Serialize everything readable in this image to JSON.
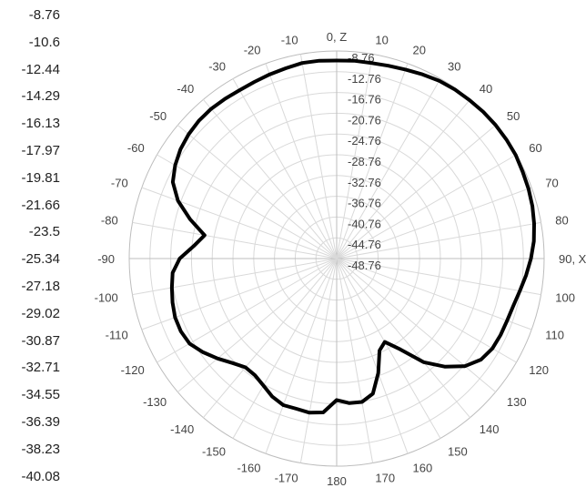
{
  "chart_data": {
    "type": "polar-line",
    "title": "",
    "color_scale_labels": [
      "-8.76",
      "-10.6",
      "-12.44",
      "-14.29",
      "-16.13",
      "-17.97",
      "-19.81",
      "-21.66",
      "-23.5",
      "-25.34",
      "-27.18",
      "-29.02",
      "-30.87",
      "-32.71",
      "-34.55",
      "-36.39",
      "-38.23",
      "-40.08"
    ],
    "radial_ticks": [
      "-8.76",
      "-12.76",
      "-16.76",
      "-20.76",
      "-24.76",
      "-28.76",
      "-32.76",
      "-36.76",
      "-40.76",
      "-44.76",
      "-48.76"
    ],
    "radial_range": [
      -48.76,
      -8.76
    ],
    "angular_ticks": [
      {
        "angle": 0,
        "label": "0, Z"
      },
      {
        "angle": 10,
        "label": "10"
      },
      {
        "angle": 20,
        "label": "20"
      },
      {
        "angle": 30,
        "label": "30"
      },
      {
        "angle": 40,
        "label": "40"
      },
      {
        "angle": 50,
        "label": "50"
      },
      {
        "angle": 60,
        "label": "60"
      },
      {
        "angle": 70,
        "label": "70"
      },
      {
        "angle": 80,
        "label": "80"
      },
      {
        "angle": 90,
        "label": "90, X"
      },
      {
        "angle": 100,
        "label": "100"
      },
      {
        "angle": 110,
        "label": "110"
      },
      {
        "angle": 120,
        "label": "120"
      },
      {
        "angle": 130,
        "label": "130"
      },
      {
        "angle": 140,
        "label": "140"
      },
      {
        "angle": 150,
        "label": "150"
      },
      {
        "angle": 160,
        "label": "160"
      },
      {
        "angle": 170,
        "label": "170"
      },
      {
        "angle": 180,
        "label": "180"
      },
      {
        "angle": -170,
        "label": "-170"
      },
      {
        "angle": -160,
        "label": "-160"
      },
      {
        "angle": -150,
        "label": "-150"
      },
      {
        "angle": -140,
        "label": "-140"
      },
      {
        "angle": -130,
        "label": "-130"
      },
      {
        "angle": -120,
        "label": "-120"
      },
      {
        "angle": -110,
        "label": "-110"
      },
      {
        "angle": -100,
        "label": "-100"
      },
      {
        "angle": -90,
        "label": "-90"
      },
      {
        "angle": -80,
        "label": "-80"
      },
      {
        "angle": -70,
        "label": "-70"
      },
      {
        "angle": -60,
        "label": "-60"
      },
      {
        "angle": -50,
        "label": "-50"
      },
      {
        "angle": -40,
        "label": "-40"
      },
      {
        "angle": -30,
        "label": "-30"
      },
      {
        "angle": -20,
        "label": "-20"
      },
      {
        "angle": -10,
        "label": "-10"
      }
    ],
    "grid": true,
    "series": [
      {
        "color": "#000000",
        "theta": [
          -180,
          -175,
          -170,
          -165,
          -160,
          -155,
          -150,
          -145,
          -140,
          -135,
          -130,
          -125,
          -120,
          -115,
          -110,
          -105,
          -100,
          -95,
          -90,
          -85,
          -80,
          -75,
          -70,
          -65,
          -60,
          -55,
          -50,
          -45,
          -40,
          -35,
          -30,
          -25,
          -20,
          -15,
          -10,
          -5,
          0,
          5,
          10,
          15,
          20,
          25,
          30,
          35,
          40,
          45,
          50,
          55,
          60,
          65,
          70,
          75,
          80,
          85,
          90,
          95,
          100,
          105,
          110,
          115,
          120,
          125,
          130,
          135,
          140,
          145,
          150,
          155,
          160,
          165,
          170,
          175,
          180
        ],
        "r": [
          -21.5,
          -19.0,
          -18.6,
          -18.8,
          -18.7,
          -19.4,
          -20.5,
          -21.3,
          -21.4,
          -20.3,
          -18.8,
          -17.3,
          -16.0,
          -15.6,
          -15.6,
          -16.0,
          -16.5,
          -17.0,
          -18.5,
          -21.1,
          -22.9,
          -19.5,
          -16.2,
          -13.9,
          -12.8,
          -12.0,
          -11.5,
          -11.2,
          -11.1,
          -11.2,
          -11.3,
          -11.2,
          -11.0,
          -10.8,
          -10.5,
          -10.5,
          -10.6,
          -10.5,
          -10.5,
          -10.3,
          -10.0,
          -9.6,
          -9.2,
          -9.0,
          -8.9,
          -8.8,
          -8.76,
          -8.8,
          -8.9,
          -9.2,
          -9.4,
          -9.7,
          -10.1,
          -10.6,
          -11.3,
          -12.1,
          -12.9,
          -13.5,
          -13.8,
          -13.9,
          -14.1,
          -14.8,
          -16.5,
          -19.3,
          -22.7,
          -27.4,
          -30.2,
          -29.2,
          -25.3,
          -21.8,
          -20.7,
          -20.8,
          -21.5
        ]
      }
    ]
  },
  "colors": {
    "trace": "#000000",
    "grid": "#d9d9d9",
    "axis": "#bdbdbd"
  }
}
